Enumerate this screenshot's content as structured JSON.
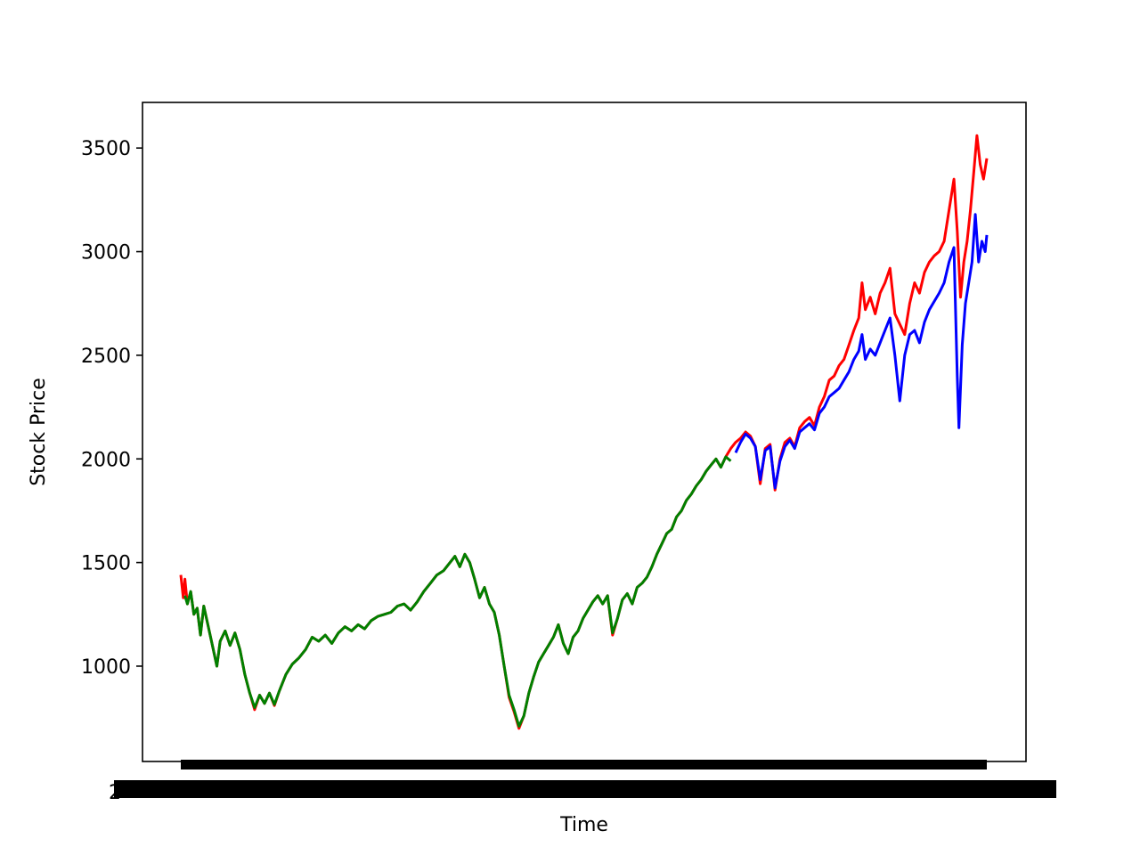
{
  "chart_data": {
    "type": "line",
    "title": "",
    "xlabel": "Time",
    "ylabel": "Stock Price",
    "ylim": [
      540,
      3720
    ],
    "y_ticks": [
      1000,
      1500,
      2000,
      2500,
      3000,
      3500
    ],
    "grid": false,
    "legend": "none",
    "x_tick_labels_note": "dense overlapping date labels render as a solid black band",
    "x_ticks_text": "2",
    "series": [
      {
        "color": "#ff0000",
        "role": "actual",
        "points": [
          [
            0,
            1440
          ],
          [
            3,
            1330
          ],
          [
            5,
            1420
          ],
          [
            8,
            1300
          ],
          [
            12,
            1360
          ],
          [
            16,
            1250
          ],
          [
            20,
            1280
          ],
          [
            24,
            1150
          ],
          [
            28,
            1290
          ],
          [
            33,
            1200
          ],
          [
            38,
            1110
          ],
          [
            44,
            1000
          ],
          [
            48,
            1120
          ],
          [
            54,
            1170
          ],
          [
            60,
            1100
          ],
          [
            66,
            1160
          ],
          [
            72,
            1080
          ],
          [
            78,
            960
          ],
          [
            84,
            870
          ],
          [
            90,
            790
          ],
          [
            96,
            860
          ],
          [
            102,
            820
          ],
          [
            108,
            870
          ],
          [
            114,
            810
          ],
          [
            120,
            880
          ],
          [
            128,
            960
          ],
          [
            136,
            1010
          ],
          [
            144,
            1040
          ],
          [
            152,
            1080
          ],
          [
            160,
            1140
          ],
          [
            168,
            1120
          ],
          [
            176,
            1150
          ],
          [
            184,
            1110
          ],
          [
            192,
            1160
          ],
          [
            200,
            1190
          ],
          [
            208,
            1170
          ],
          [
            216,
            1200
          ],
          [
            224,
            1180
          ],
          [
            232,
            1220
          ],
          [
            240,
            1240
          ],
          [
            248,
            1250
          ],
          [
            256,
            1260
          ],
          [
            264,
            1290
          ],
          [
            272,
            1300
          ],
          [
            280,
            1270
          ],
          [
            288,
            1310
          ],
          [
            296,
            1360
          ],
          [
            304,
            1400
          ],
          [
            312,
            1440
          ],
          [
            320,
            1460
          ],
          [
            328,
            1500
          ],
          [
            334,
            1530
          ],
          [
            340,
            1480
          ],
          [
            346,
            1540
          ],
          [
            352,
            1500
          ],
          [
            358,
            1420
          ],
          [
            364,
            1330
          ],
          [
            370,
            1380
          ],
          [
            376,
            1300
          ],
          [
            382,
            1260
          ],
          [
            388,
            1150
          ],
          [
            394,
            1000
          ],
          [
            400,
            850
          ],
          [
            406,
            780
          ],
          [
            412,
            700
          ],
          [
            418,
            760
          ],
          [
            424,
            870
          ],
          [
            430,
            950
          ],
          [
            436,
            1020
          ],
          [
            442,
            1060
          ],
          [
            448,
            1100
          ],
          [
            454,
            1140
          ],
          [
            460,
            1200
          ],
          [
            466,
            1110
          ],
          [
            472,
            1060
          ],
          [
            478,
            1140
          ],
          [
            484,
            1170
          ],
          [
            490,
            1230
          ],
          [
            496,
            1270
          ],
          [
            502,
            1310
          ],
          [
            508,
            1340
          ],
          [
            514,
            1300
          ],
          [
            520,
            1340
          ],
          [
            526,
            1150
          ],
          [
            532,
            1230
          ],
          [
            538,
            1320
          ],
          [
            544,
            1350
          ],
          [
            550,
            1300
          ],
          [
            556,
            1380
          ],
          [
            562,
            1400
          ],
          [
            568,
            1430
          ],
          [
            574,
            1480
          ],
          [
            580,
            1540
          ],
          [
            586,
            1590
          ],
          [
            592,
            1640
          ],
          [
            598,
            1660
          ],
          [
            604,
            1720
          ],
          [
            610,
            1750
          ],
          [
            616,
            1800
          ],
          [
            622,
            1830
          ],
          [
            628,
            1870
          ],
          [
            634,
            1900
          ],
          [
            640,
            1940
          ],
          [
            646,
            1970
          ],
          [
            652,
            2000
          ],
          [
            658,
            1960
          ],
          [
            664,
            2010
          ],
          [
            670,
            2050
          ],
          [
            676,
            2080
          ],
          [
            682,
            2100
          ],
          [
            688,
            2130
          ],
          [
            694,
            2110
          ],
          [
            700,
            2060
          ],
          [
            706,
            1880
          ],
          [
            712,
            2050
          ],
          [
            718,
            2070
          ],
          [
            724,
            1850
          ],
          [
            730,
            2000
          ],
          [
            736,
            2080
          ],
          [
            742,
            2100
          ],
          [
            748,
            2060
          ],
          [
            754,
            2150
          ],
          [
            760,
            2180
          ],
          [
            766,
            2200
          ],
          [
            772,
            2160
          ],
          [
            778,
            2250
          ],
          [
            784,
            2300
          ],
          [
            790,
            2380
          ],
          [
            796,
            2400
          ],
          [
            802,
            2450
          ],
          [
            808,
            2480
          ],
          [
            814,
            2550
          ],
          [
            820,
            2620
          ],
          [
            826,
            2680
          ],
          [
            830,
            2850
          ],
          [
            834,
            2720
          ],
          [
            840,
            2780
          ],
          [
            846,
            2700
          ],
          [
            852,
            2800
          ],
          [
            858,
            2850
          ],
          [
            864,
            2920
          ],
          [
            870,
            2700
          ],
          [
            876,
            2650
          ],
          [
            882,
            2600
          ],
          [
            888,
            2750
          ],
          [
            894,
            2850
          ],
          [
            900,
            2800
          ],
          [
            906,
            2900
          ],
          [
            912,
            2950
          ],
          [
            918,
            2980
          ],
          [
            924,
            3000
          ],
          [
            930,
            3050
          ],
          [
            936,
            3200
          ],
          [
            942,
            3350
          ],
          [
            946,
            3100
          ],
          [
            950,
            2780
          ],
          [
            954,
            2950
          ],
          [
            958,
            3050
          ],
          [
            962,
            3200
          ],
          [
            966,
            3380
          ],
          [
            970,
            3560
          ],
          [
            974,
            3420
          ],
          [
            978,
            3350
          ],
          [
            982,
            3450
          ]
        ]
      },
      {
        "color": "#0000ff",
        "role": "predicted",
        "points": [
          [
            676,
            2030
          ],
          [
            682,
            2080
          ],
          [
            688,
            2120
          ],
          [
            694,
            2100
          ],
          [
            700,
            2060
          ],
          [
            706,
            1900
          ],
          [
            712,
            2040
          ],
          [
            718,
            2060
          ],
          [
            724,
            1860
          ],
          [
            730,
            1990
          ],
          [
            736,
            2060
          ],
          [
            742,
            2090
          ],
          [
            748,
            2050
          ],
          [
            754,
            2130
          ],
          [
            760,
            2150
          ],
          [
            766,
            2170
          ],
          [
            772,
            2140
          ],
          [
            778,
            2220
          ],
          [
            784,
            2250
          ],
          [
            790,
            2300
          ],
          [
            796,
            2320
          ],
          [
            802,
            2340
          ],
          [
            808,
            2380
          ],
          [
            814,
            2420
          ],
          [
            820,
            2480
          ],
          [
            826,
            2520
          ],
          [
            830,
            2600
          ],
          [
            834,
            2480
          ],
          [
            840,
            2530
          ],
          [
            846,
            2500
          ],
          [
            852,
            2560
          ],
          [
            858,
            2620
          ],
          [
            864,
            2680
          ],
          [
            870,
            2500
          ],
          [
            876,
            2280
          ],
          [
            882,
            2500
          ],
          [
            888,
            2600
          ],
          [
            894,
            2620
          ],
          [
            900,
            2560
          ],
          [
            906,
            2660
          ],
          [
            912,
            2720
          ],
          [
            918,
            2760
          ],
          [
            924,
            2800
          ],
          [
            930,
            2850
          ],
          [
            936,
            2950
          ],
          [
            942,
            3020
          ],
          [
            946,
            2400
          ],
          [
            948,
            2150
          ],
          [
            952,
            2550
          ],
          [
            956,
            2750
          ],
          [
            960,
            2850
          ],
          [
            964,
            2950
          ],
          [
            968,
            3180
          ],
          [
            972,
            2950
          ],
          [
            976,
            3050
          ],
          [
            980,
            3000
          ],
          [
            982,
            3080
          ]
        ]
      },
      {
        "color": "#008000",
        "role": "fitted",
        "points": [
          [
            5,
            1340
          ],
          [
            8,
            1300
          ],
          [
            12,
            1360
          ],
          [
            16,
            1250
          ],
          [
            20,
            1280
          ],
          [
            24,
            1150
          ],
          [
            28,
            1290
          ],
          [
            33,
            1200
          ],
          [
            38,
            1110
          ],
          [
            44,
            1000
          ],
          [
            48,
            1120
          ],
          [
            54,
            1170
          ],
          [
            60,
            1100
          ],
          [
            66,
            1160
          ],
          [
            72,
            1080
          ],
          [
            78,
            960
          ],
          [
            84,
            870
          ],
          [
            90,
            800
          ],
          [
            96,
            860
          ],
          [
            102,
            820
          ],
          [
            108,
            870
          ],
          [
            114,
            815
          ],
          [
            120,
            880
          ],
          [
            128,
            960
          ],
          [
            136,
            1010
          ],
          [
            144,
            1040
          ],
          [
            152,
            1080
          ],
          [
            160,
            1140
          ],
          [
            168,
            1120
          ],
          [
            176,
            1150
          ],
          [
            184,
            1110
          ],
          [
            192,
            1160
          ],
          [
            200,
            1190
          ],
          [
            208,
            1170
          ],
          [
            216,
            1200
          ],
          [
            224,
            1180
          ],
          [
            232,
            1220
          ],
          [
            240,
            1240
          ],
          [
            248,
            1250
          ],
          [
            256,
            1260
          ],
          [
            264,
            1290
          ],
          [
            272,
            1300
          ],
          [
            280,
            1270
          ],
          [
            288,
            1310
          ],
          [
            296,
            1360
          ],
          [
            304,
            1400
          ],
          [
            312,
            1440
          ],
          [
            320,
            1460
          ],
          [
            328,
            1500
          ],
          [
            334,
            1530
          ],
          [
            340,
            1480
          ],
          [
            346,
            1540
          ],
          [
            352,
            1500
          ],
          [
            358,
            1420
          ],
          [
            364,
            1330
          ],
          [
            370,
            1380
          ],
          [
            376,
            1300
          ],
          [
            382,
            1260
          ],
          [
            388,
            1150
          ],
          [
            394,
            1000
          ],
          [
            400,
            860
          ],
          [
            406,
            790
          ],
          [
            412,
            710
          ],
          [
            418,
            760
          ],
          [
            424,
            870
          ],
          [
            430,
            950
          ],
          [
            436,
            1020
          ],
          [
            442,
            1060
          ],
          [
            448,
            1100
          ],
          [
            454,
            1140
          ],
          [
            460,
            1200
          ],
          [
            466,
            1110
          ],
          [
            472,
            1060
          ],
          [
            478,
            1140
          ],
          [
            484,
            1170
          ],
          [
            490,
            1230
          ],
          [
            496,
            1270
          ],
          [
            502,
            1310
          ],
          [
            508,
            1340
          ],
          [
            514,
            1300
          ],
          [
            520,
            1340
          ],
          [
            526,
            1160
          ],
          [
            532,
            1230
          ],
          [
            538,
            1320
          ],
          [
            544,
            1350
          ],
          [
            550,
            1300
          ],
          [
            556,
            1380
          ],
          [
            562,
            1400
          ],
          [
            568,
            1430
          ],
          [
            574,
            1480
          ],
          [
            580,
            1540
          ],
          [
            586,
            1590
          ],
          [
            592,
            1640
          ],
          [
            598,
            1660
          ],
          [
            604,
            1720
          ],
          [
            610,
            1750
          ],
          [
            616,
            1800
          ],
          [
            622,
            1830
          ],
          [
            628,
            1870
          ],
          [
            634,
            1900
          ],
          [
            640,
            1940
          ],
          [
            646,
            1970
          ],
          [
            652,
            2000
          ],
          [
            658,
            1960
          ],
          [
            664,
            2010
          ],
          [
            670,
            1990
          ]
        ]
      }
    ]
  }
}
